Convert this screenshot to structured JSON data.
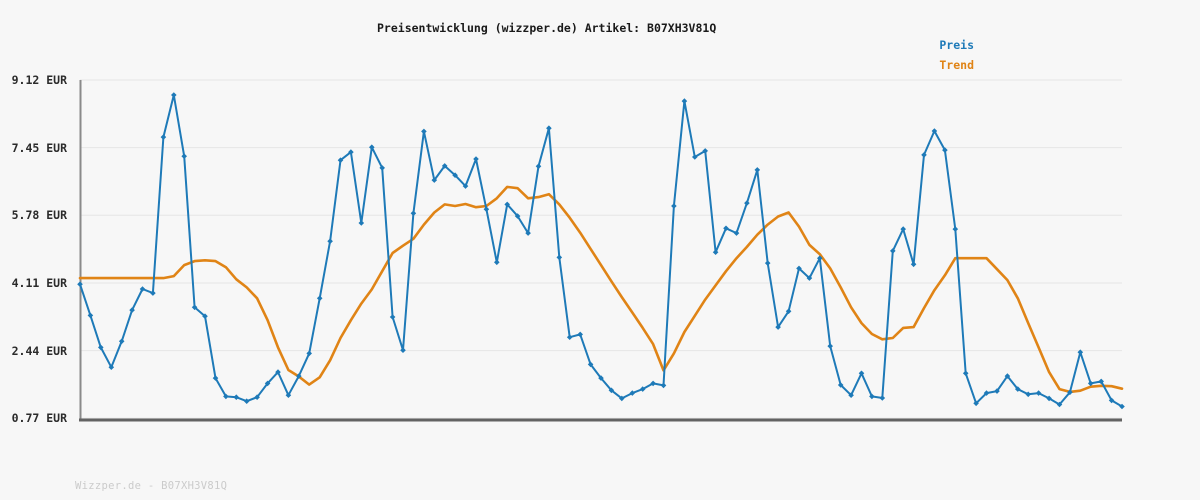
{
  "header": {
    "title": "Preisentwicklung (wizzper.de) Artikel: B07XH3V81Q"
  },
  "legend": [
    {
      "label": "Preis",
      "color": "#1e7ab8"
    },
    {
      "label": "Trend",
      "color": "#e08416"
    }
  ],
  "footer": {
    "text": "Wizzper.de - B07XH3V81Q"
  },
  "colors": {
    "background": "#f7f7f7",
    "grid": "#e6e6e6",
    "axis_x": "#636363",
    "axis_y": "#8a8a8a",
    "title": "#1a1a1a",
    "tick_label": "#2b2b2b",
    "watermark": "#cbcbcb"
  },
  "chart_data": {
    "type": "line",
    "title": "Preisentwicklung (wizzper.de) Artikel: B07XH3V81Q",
    "xlabel": "",
    "ylabel": "EUR",
    "ylim": [
      0.77,
      9.12
    ],
    "grid": true,
    "legend_position": "top-right",
    "yticks": [
      {
        "value": 9.12,
        "label": "9.12 EUR"
      },
      {
        "value": 7.45,
        "label": "7.45 EUR"
      },
      {
        "value": 5.78,
        "label": "5.78 EUR"
      },
      {
        "value": 4.11,
        "label": "4.11 EUR"
      },
      {
        "value": 2.44,
        "label": "2.44 EUR"
      },
      {
        "value": 0.77,
        "label": "0.77 EUR"
      }
    ],
    "x_tick_labels": [],
    "series": [
      {
        "name": "Preis",
        "color": "#1e7ab8",
        "marker": "diamond",
        "line_width": 2,
        "values": [
          4.08,
          3.31,
          2.52,
          2.03,
          2.67,
          3.44,
          3.96,
          3.86,
          7.71,
          8.75,
          7.24,
          3.51,
          3.29,
          1.76,
          1.31,
          1.29,
          1.19,
          1.29,
          1.63,
          1.91,
          1.34,
          1.81,
          2.37,
          3.73,
          5.14,
          7.14,
          7.34,
          5.59,
          7.46,
          6.95,
          3.27,
          2.45,
          5.83,
          7.85,
          6.65,
          7.0,
          6.77,
          6.5,
          7.17,
          5.93,
          4.62,
          6.05,
          5.76,
          5.34,
          6.99,
          7.93,
          4.74,
          2.77,
          2.84,
          2.1,
          1.76,
          1.46,
          1.26,
          1.39,
          1.49,
          1.63,
          1.58,
          6.01,
          8.6,
          7.22,
          7.37,
          4.87,
          5.46,
          5.34,
          6.08,
          6.9,
          4.6,
          3.02,
          3.41,
          4.47,
          4.23,
          4.72,
          2.55,
          1.59,
          1.34,
          1.88,
          1.31,
          1.27,
          4.9,
          5.44,
          4.57,
          7.27,
          7.86,
          7.39,
          5.44,
          1.88,
          1.14,
          1.39,
          1.44,
          1.81,
          1.49,
          1.36,
          1.39,
          1.26,
          1.11,
          1.41,
          2.4,
          1.63,
          1.68,
          1.21,
          1.06
        ]
      },
      {
        "name": "Trend",
        "color": "#e08416",
        "marker": "none",
        "line_width": 2.6,
        "values": [
          4.23,
          4.23,
          4.23,
          4.23,
          4.23,
          4.23,
          4.23,
          4.23,
          4.23,
          4.28,
          4.55,
          4.65,
          4.67,
          4.65,
          4.5,
          4.2,
          4.0,
          3.73,
          3.19,
          2.52,
          1.96,
          1.8,
          1.6,
          1.78,
          2.2,
          2.75,
          3.19,
          3.6,
          3.95,
          4.4,
          4.85,
          5.03,
          5.2,
          5.55,
          5.85,
          6.05,
          6.01,
          6.06,
          5.98,
          6.01,
          6.2,
          6.48,
          6.45,
          6.2,
          6.23,
          6.3,
          6.05,
          5.72,
          5.35,
          4.95,
          4.55,
          4.15,
          3.76,
          3.38,
          3.0,
          2.6,
          1.95,
          2.37,
          2.9,
          3.3,
          3.7,
          4.05,
          4.4,
          4.72,
          5.0,
          5.3,
          5.55,
          5.75,
          5.85,
          5.5,
          5.05,
          4.82,
          4.47,
          4.0,
          3.51,
          3.12,
          2.85,
          2.72,
          2.75,
          3.0,
          3.02,
          3.49,
          3.93,
          4.3,
          4.72,
          4.72,
          4.72,
          4.72,
          4.45,
          4.18,
          3.73,
          3.12,
          2.52,
          1.91,
          1.49,
          1.42,
          1.45,
          1.55,
          1.57,
          1.56,
          1.5
        ]
      }
    ]
  }
}
